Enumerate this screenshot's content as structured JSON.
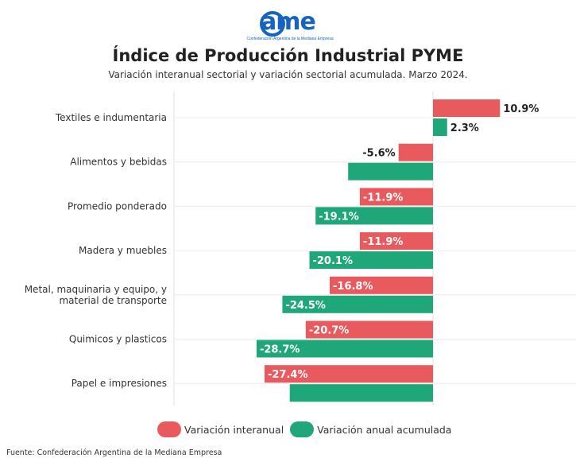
{
  "header": {
    "logo_text": "ame",
    "logo_subtitle": "Confederación Argentina de la Mediana Empresa"
  },
  "chart_data": {
    "type": "bar",
    "orientation": "horizontal",
    "title": "Índice de Producción Industrial PYME",
    "subtitle": "Variación interanual sectorial y variación sectorial acumulada. Marzo 2024.",
    "categories": [
      "Textiles e indumentaria",
      "Alimentos y bebidas",
      "Promedio ponderado",
      "Madera y muebles",
      "Metal, maquinaria y equipo, y material de transporte",
      "Quimicos y plasticos",
      "Papel e impresiones"
    ],
    "series": [
      {
        "name": "Variación interanual",
        "color": "#e85a5e",
        "values": [
          10.9,
          -5.6,
          -11.9,
          -11.9,
          -16.8,
          -20.7,
          -27.4
        ],
        "labels": [
          "10.9%",
          "-5.6%",
          "-11.9%",
          "-11.9%",
          "-16.8%",
          "-20.7%",
          "-27.4%"
        ]
      },
      {
        "name": "Variación anual acumulada",
        "color": "#1fa77a",
        "values": [
          2.3,
          -13.8,
          -19.1,
          -20.1,
          -24.5,
          -28.7,
          -23.3
        ],
        "labels": [
          "2.3%",
          "",
          "-19.1%",
          "-20.1%",
          "-24.5%",
          "-28.7%",
          ""
        ]
      }
    ],
    "xlim": [
      -30,
      12
    ],
    "grid": true,
    "legend": "bottom"
  },
  "footer": {
    "source": "Fuente: Confederación Argentina de la Mediana Empresa"
  }
}
